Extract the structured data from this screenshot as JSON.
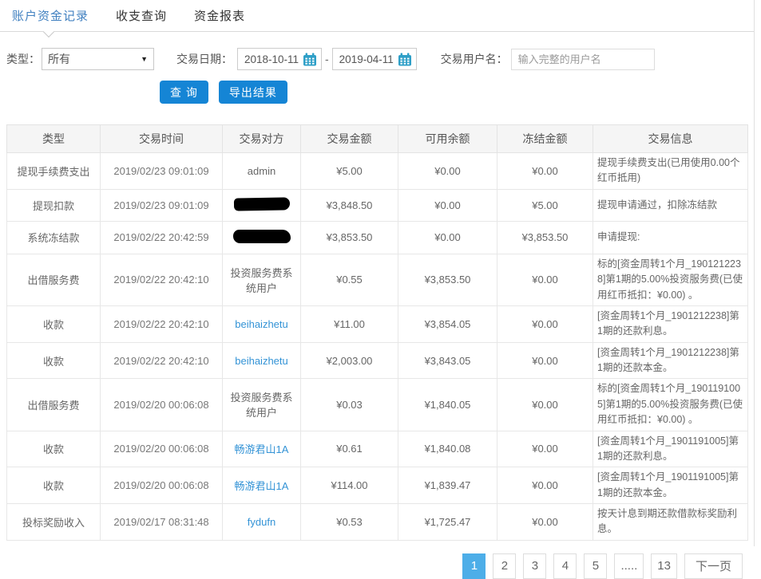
{
  "colors": {
    "accent": "#1585d5",
    "link": "#3393d6",
    "tab-active": "#4080c0",
    "pager-active": "#4daee8",
    "calendar": "#2e9fc7"
  },
  "tabs": [
    {
      "label": "账户资金记录",
      "active": true
    },
    {
      "label": "收支查询",
      "active": false
    },
    {
      "label": "资金报表",
      "active": false
    }
  ],
  "filters": {
    "type_label": "类型：",
    "type_value": "所有",
    "date_label": "交易日期：",
    "date_from": "2018-10-11",
    "date_separator": "-",
    "date_to": "2019-04-11",
    "username_label": "交易用户名：",
    "username_placeholder": "输入完整的用户名",
    "query_button": "查 询",
    "export_button": "导出结果"
  },
  "table": {
    "headers": [
      "类型",
      "交易时间",
      "交易对方",
      "交易金额",
      "可用余额",
      "冻结金额",
      "交易信息"
    ],
    "rows": [
      {
        "type": "提现手续费支出",
        "time": "2019/02/23 09:01:09",
        "party": "admin",
        "party_kind": "text",
        "amount": "¥5.00",
        "balance": "¥0.00",
        "frozen": "¥0.00",
        "info": "提现手续费支出(已用使用0.00个红币抵用)"
      },
      {
        "type": "提现扣款",
        "time": "2019/02/23 09:01:09",
        "party": "",
        "party_kind": "redacted",
        "amount": "¥3,848.50",
        "balance": "¥0.00",
        "frozen": "¥5.00",
        "info": "提现申请通过，扣除冻结款"
      },
      {
        "type": "系统冻结款",
        "time": "2019/02/22 20:42:59",
        "party": "",
        "party_kind": "redacted",
        "amount": "¥3,853.50",
        "balance": "¥0.00",
        "frozen": "¥3,853.50",
        "info": "申请提现:"
      },
      {
        "type": "出借服务费",
        "time": "2019/02/22 20:42:10",
        "party": "投资服务费系统用户",
        "party_kind": "text",
        "amount": "¥0.55",
        "balance": "¥3,853.50",
        "frozen": "¥0.00",
        "info": "标的[资金周转1个月_1901212238]第1期的5.00%投资服务费(已使用红币抵扣：¥0.00) 。"
      },
      {
        "type": "收款",
        "time": "2019/02/22 20:42:10",
        "party": "beihaizhetu",
        "party_kind": "link",
        "amount": "¥11.00",
        "balance": "¥3,854.05",
        "frozen": "¥0.00",
        "info": "[资金周转1个月_1901212238]第1期的还款利息。"
      },
      {
        "type": "收款",
        "time": "2019/02/22 20:42:10",
        "party": "beihaizhetu",
        "party_kind": "link",
        "amount": "¥2,003.00",
        "balance": "¥3,843.05",
        "frozen": "¥0.00",
        "info": "[资金周转1个月_1901212238]第1期的还款本金。"
      },
      {
        "type": "出借服务费",
        "time": "2019/02/20 00:06:08",
        "party": "投资服务费系统用户",
        "party_kind": "text",
        "amount": "¥0.03",
        "balance": "¥1,840.05",
        "frozen": "¥0.00",
        "info": "标的[资金周转1个月_1901191005]第1期的5.00%投资服务费(已使用红币抵扣：¥0.00) 。"
      },
      {
        "type": "收款",
        "time": "2019/02/20 00:06:08",
        "party": "畅游君山1A",
        "party_kind": "link",
        "amount": "¥0.61",
        "balance": "¥1,840.08",
        "frozen": "¥0.00",
        "info": "[资金周转1个月_1901191005]第1期的还款利息。"
      },
      {
        "type": "收款",
        "time": "2019/02/20 00:06:08",
        "party": "畅游君山1A",
        "party_kind": "link",
        "amount": "¥114.00",
        "balance": "¥1,839.47",
        "frozen": "¥0.00",
        "info": "[资金周转1个月_1901191005]第1期的还款本金。"
      },
      {
        "type": "投标奖励收入",
        "time": "2019/02/17 08:31:48",
        "party": "fydufn",
        "party_kind": "link",
        "amount": "¥0.53",
        "balance": "¥1,725.47",
        "frozen": "¥0.00",
        "info": "按天计息到期还款借款标奖励利息。"
      }
    ]
  },
  "pagination": {
    "pages": [
      "1",
      "2",
      "3",
      "4",
      "5",
      ".....",
      "13"
    ],
    "active_page": "1",
    "next_label": "下一页"
  }
}
